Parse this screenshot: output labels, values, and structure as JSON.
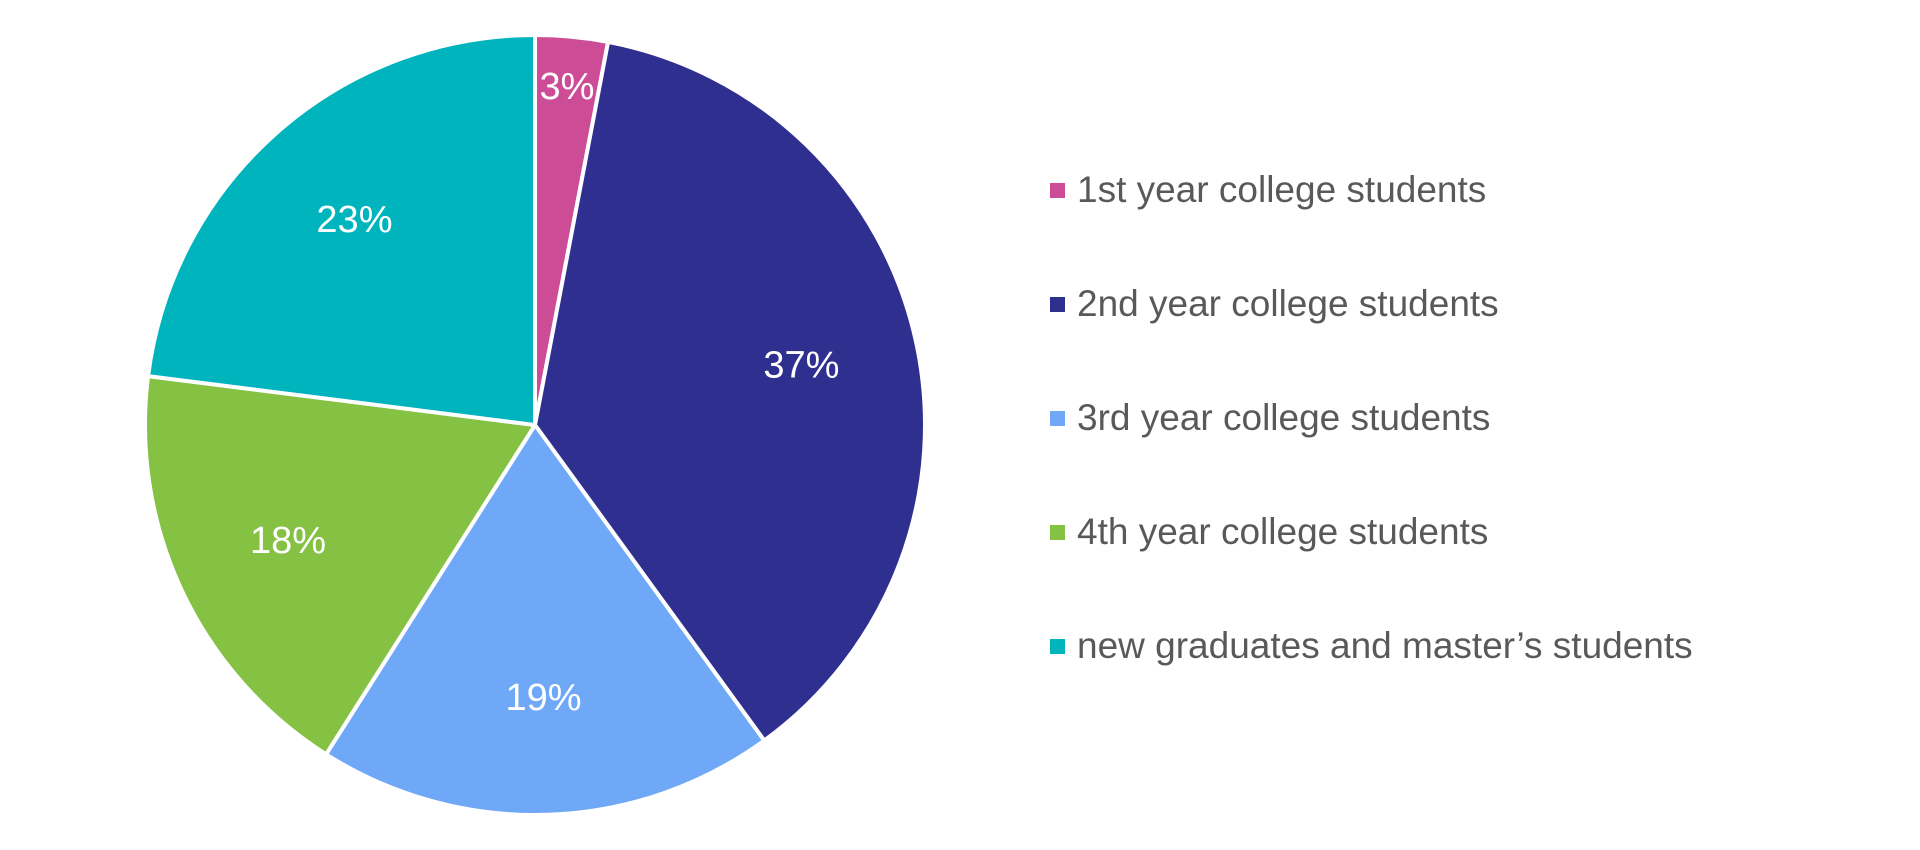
{
  "chart_data": {
    "type": "pie",
    "title": "",
    "start_angle_deg": 0,
    "direction": "clockwise",
    "legend_position": "right",
    "slices": [
      {
        "label": "1st year college students",
        "value": 3,
        "display": "3%",
        "color": "#cc4c95"
      },
      {
        "label": "2nd year college students",
        "value": 37,
        "display": "37%",
        "color": "#2e2f8f"
      },
      {
        "label": "3rd year college students",
        "value": 19,
        "display": "19%",
        "color": "#6fa8f7"
      },
      {
        "label": "4th year college students",
        "value": 18,
        "display": "18%",
        "color": "#85c143"
      },
      {
        "label": "new graduates and master’s students",
        "value": 23,
        "display": "23%",
        "color": "#00b4bd"
      }
    ]
  }
}
